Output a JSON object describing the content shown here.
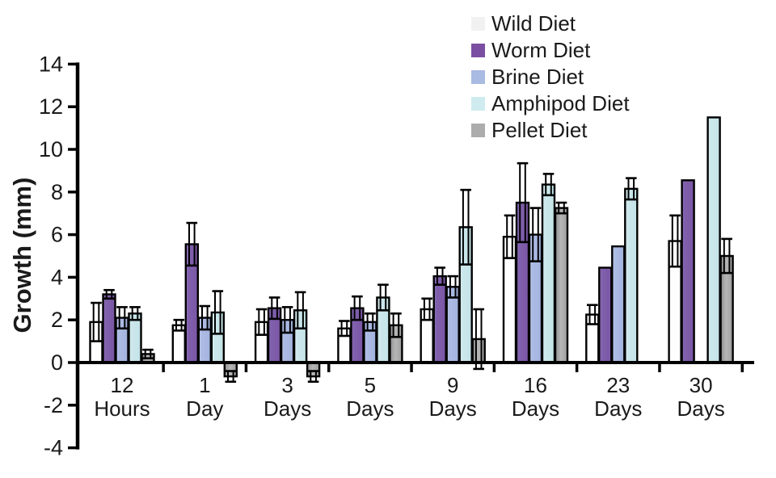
{
  "chart_data": {
    "type": "bar",
    "title": "",
    "ylabel": "Growth (mm)",
    "xlabel": "",
    "ylim": [
      -4,
      14
    ],
    "yticks": [
      14,
      12,
      10,
      8,
      6,
      4,
      2,
      0,
      -2,
      -4
    ],
    "grid": false,
    "legend_position": "top-right",
    "categories": [
      {
        "line1": "12",
        "line2": "Hours"
      },
      {
        "line1": "1",
        "line2": "Day"
      },
      {
        "line1": "3",
        "line2": "Days"
      },
      {
        "line1": "5",
        "line2": "Days"
      },
      {
        "line1": "9",
        "line2": "Days"
      },
      {
        "line1": "16",
        "line2": "Days"
      },
      {
        "line1": "23",
        "line2": "Days"
      },
      {
        "line1": "30",
        "line2": "Days"
      }
    ],
    "series": [
      {
        "name": "Wild Diet",
        "color": "#ffffff",
        "legend_color": "#f1f1f1",
        "values": [
          1.9,
          1.75,
          1.9,
          1.6,
          2.5,
          5.9,
          2.25,
          5.7
        ],
        "errors": [
          0.9,
          0.25,
          0.6,
          0.35,
          0.5,
          1.0,
          0.45,
          1.2
        ]
      },
      {
        "name": "Worm Diet",
        "color": "#7b56a5",
        "legend_color": "#7a4fa2",
        "values": [
          3.2,
          5.55,
          2.55,
          2.55,
          4.05,
          7.5,
          4.45,
          8.55
        ],
        "errors": [
          0.2,
          1.0,
          0.5,
          0.55,
          0.4,
          1.85,
          0,
          0
        ]
      },
      {
        "name": "Brine Diet",
        "color": "#aab9e2",
        "legend_color": "#a9bae3",
        "values": [
          2.1,
          2.1,
          2.0,
          1.9,
          3.55,
          6.0,
          5.45,
          null
        ],
        "errors": [
          0.5,
          0.55,
          0.6,
          0.4,
          0.5,
          1.25,
          0,
          null
        ]
      },
      {
        "name": "Amphipod Diet",
        "color": "#cbe7eb",
        "legend_color": "#cfebef",
        "values": [
          2.3,
          2.35,
          2.45,
          3.05,
          6.35,
          8.35,
          8.15,
          11.5
        ],
        "errors": [
          0.3,
          1.0,
          0.85,
          0.6,
          1.75,
          0.5,
          0.5,
          0
        ]
      },
      {
        "name": "Pellet Diet",
        "color": "#a8a8a8",
        "legend_color": "#acacac",
        "values": [
          0.4,
          -0.65,
          -0.65,
          1.75,
          1.1,
          7.25,
          null,
          5.0
        ],
        "errors": [
          0.2,
          0.25,
          0.25,
          0.55,
          1.4,
          0.25,
          null,
          0.8
        ]
      }
    ]
  }
}
